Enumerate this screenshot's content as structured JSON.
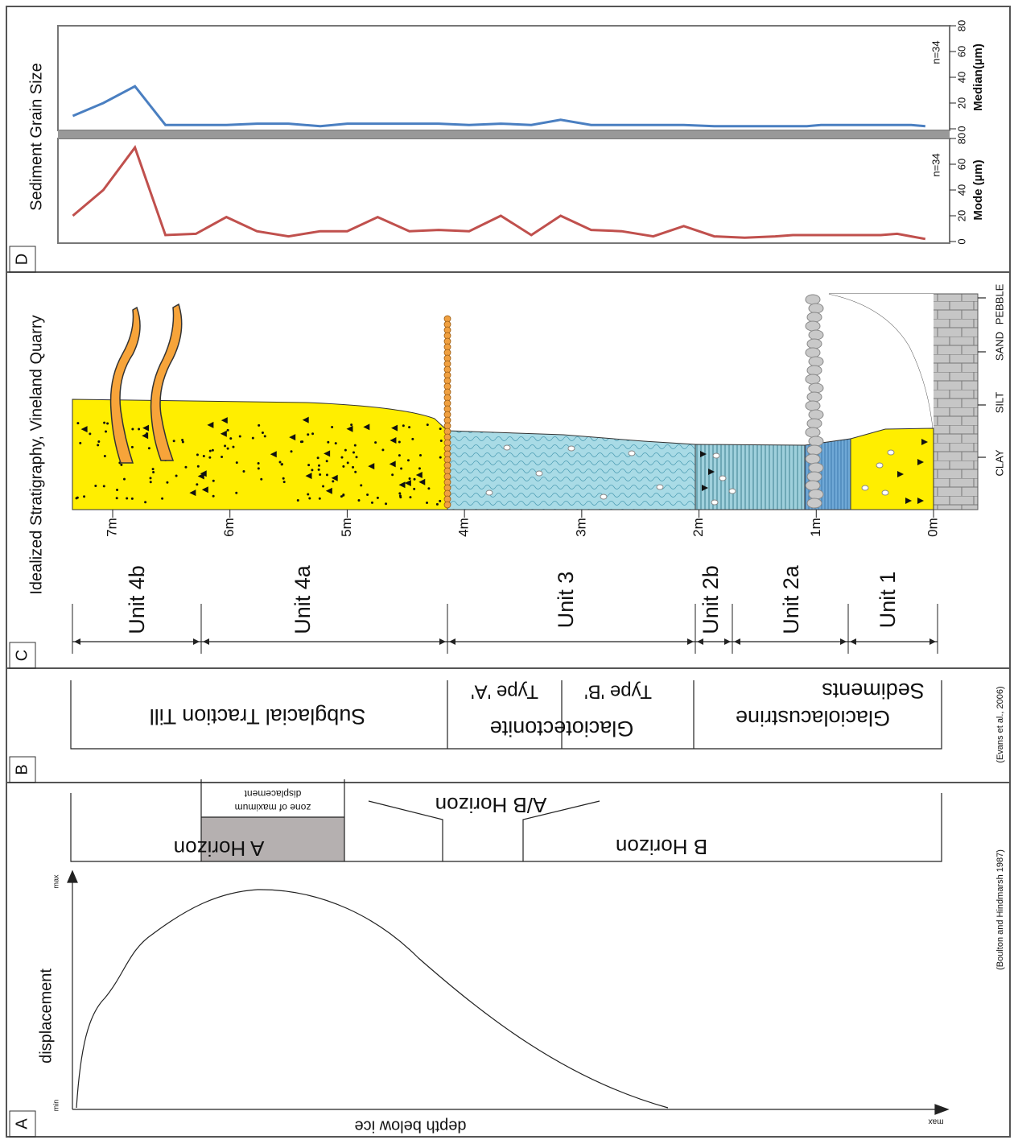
{
  "panel_a": {
    "label": "A",
    "y_axis_title": "displacement",
    "y_min_label": "min",
    "y_max_label": "max",
    "x_axis_title": "depth below ice",
    "x_max_label": "max",
    "horizons": [
      "A Horizon",
      "A/B Horizon",
      "B Horizon"
    ],
    "zone_note": [
      "zone of maximum",
      "displacement"
    ],
    "source": "(Boulton and Hindmarsh 1987)"
  },
  "panel_b": {
    "label": "B",
    "facies": [
      "Subglacial Traction Till",
      "Glaciotectonite",
      "Type 'A'",
      "Type 'B'",
      "Glaciolacustrine",
      "Sediments"
    ],
    "source": "(Evans et al., 2006)"
  },
  "panel_c": {
    "label": "C",
    "title": "Idealized Stratigraphy, Vineland Quarry",
    "depth_ticks": [
      {
        "value": 0,
        "label": "0m"
      },
      {
        "value": 1,
        "label": "1m"
      },
      {
        "value": 2,
        "label": "2m"
      },
      {
        "value": 3,
        "label": "3m"
      },
      {
        "value": 4,
        "label": "4m"
      },
      {
        "value": 5,
        "label": "5m"
      },
      {
        "value": 6,
        "label": "6m"
      },
      {
        "value": 7,
        "label": "7m"
      }
    ],
    "units": [
      "Unit 4b",
      "Unit 4a",
      "Unit 3",
      "Unit 2b",
      "Unit 2a",
      "Unit 1"
    ],
    "grain_size_labels": [
      "CLAY",
      "SILT",
      "SAND",
      "PEBBLE"
    ]
  },
  "panel_d": {
    "label": "D",
    "title": "Sediment Grain Size",
    "x": [
      7.34,
      7.08,
      6.81,
      6.55,
      6.29,
      6.03,
      5.77,
      5.5,
      5.23,
      5.0,
      4.74,
      4.47,
      4.22,
      3.96,
      3.69,
      3.43,
      3.18,
      2.92,
      2.66,
      2.39,
      2.13,
      1.87,
      1.61,
      1.35,
      1.2,
      1.08,
      0.96,
      0.82,
      0.69,
      0.56,
      0.45,
      0.31,
      0.19,
      0.07
    ],
    "charts": [
      {
        "axis_title": "Median(µm)",
        "n_label": "n=34",
        "color": "#4a7fc1",
        "ylim": [
          0,
          80
        ],
        "yticks": [
          0,
          20,
          40,
          60,
          80
        ],
        "values": [
          10,
          20,
          33,
          3,
          3,
          3,
          4,
          4,
          2,
          4,
          4,
          4,
          4,
          3,
          4,
          3,
          7,
          3,
          3,
          3,
          3,
          2,
          2,
          2,
          2,
          2,
          3,
          3,
          3,
          3,
          3,
          3,
          3,
          2
        ]
      },
      {
        "axis_title": "Mode (µm)",
        "n_label": "n=34",
        "color": "#c0504d",
        "ylim": [
          0,
          80
        ],
        "yticks": [
          0,
          20,
          40,
          60,
          80
        ],
        "values": [
          20,
          40,
          73,
          5,
          6,
          19,
          8,
          4,
          8,
          8,
          19,
          8,
          9,
          8,
          20,
          5,
          20,
          9,
          8,
          4,
          12,
          4,
          3,
          4,
          5,
          5,
          5,
          5,
          5,
          5,
          5,
          6,
          4,
          2
        ]
      }
    ]
  }
}
